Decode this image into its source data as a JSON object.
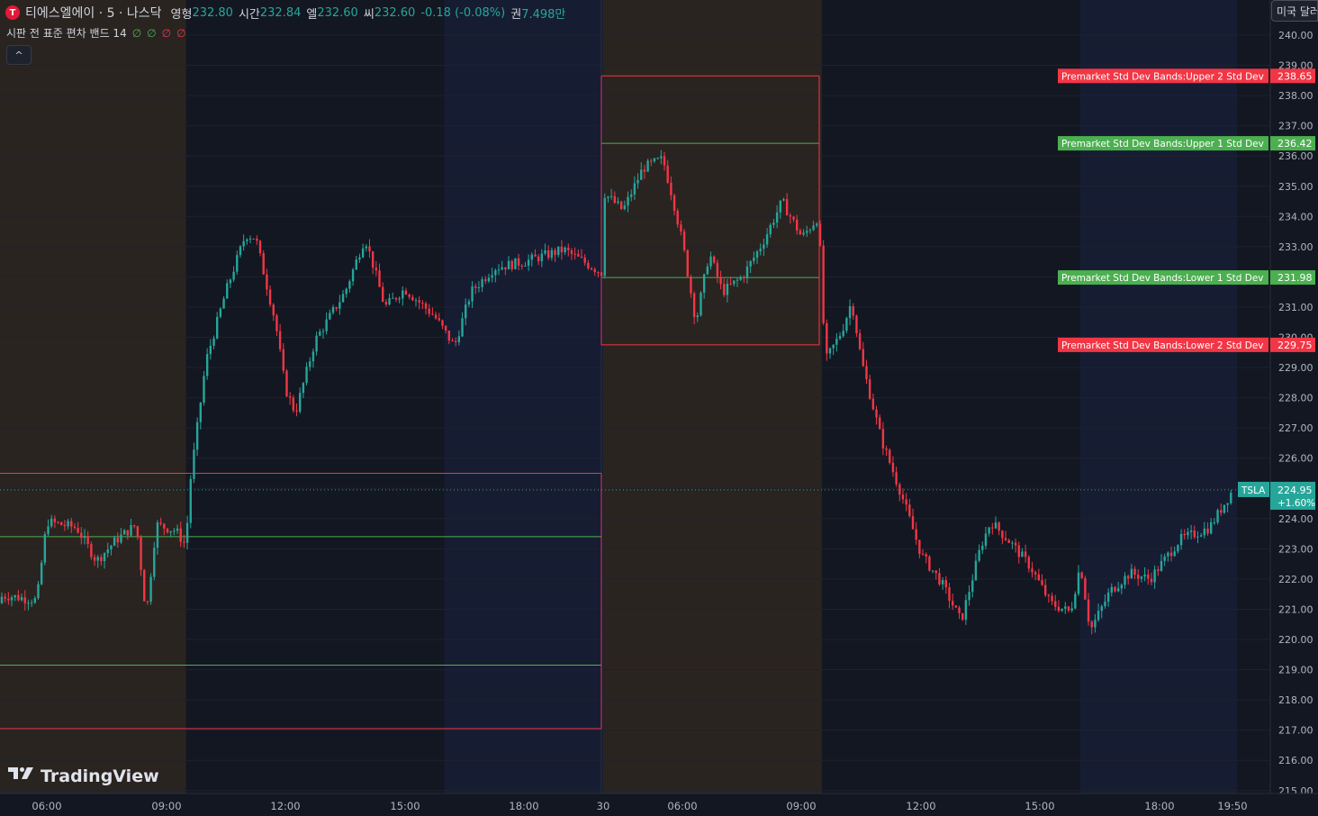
{
  "header": {
    "logo_letter": "T",
    "symbol": "티에스엘에이 · 5 · 나스닥",
    "open_label": "영형",
    "open": "232.80",
    "high_label": "시간",
    "high": "232.84",
    "low_label": "엘",
    "low": "232.60",
    "close_label": "씨",
    "close": "232.60",
    "change": "-0.18 (-0.08%)",
    "volume_label": "권",
    "volume": "7.498만"
  },
  "indicator": {
    "label": "시판 전 표준 편차 밴드 14",
    "values": [
      "∅",
      "∅",
      "∅",
      "∅"
    ]
  },
  "collapse_button": "^",
  "currency_button": "미국 달러",
  "branding": "TradingView",
  "colors": {
    "background": "#131722",
    "up": "#26a69a",
    "down": "#f23645",
    "band1": "#4caf50",
    "band2": "#f23645",
    "premarket_shade": "#2a2421",
    "postmarket_shade": "#161d33",
    "grid": "#1e222d"
  },
  "chart_data": {
    "type": "candlestick",
    "symbol": "TSLA",
    "timeframe": "5",
    "last_price": "224.95",
    "last_change": "+1.60%",
    "ylim": [
      215,
      240.5
    ],
    "y_ticks": [
      "240.00",
      "239.00",
      "238.00",
      "237.00",
      "236.00",
      "235.00",
      "234.00",
      "233.00",
      "232.00",
      "231.00",
      "230.00",
      "229.00",
      "228.00",
      "227.00",
      "226.00",
      "225.00",
      "224.00",
      "223.00",
      "222.00",
      "221.00",
      "220.00",
      "219.00",
      "218.00",
      "217.00",
      "216.00",
      "215.00"
    ],
    "x_ticks": [
      "06:00",
      "09:00",
      "12:00",
      "15:00",
      "18:00",
      "30",
      "06:00",
      "09:00",
      "12:00",
      "15:00",
      "18:00",
      "19:50"
    ],
    "sessions": [
      {
        "type": "premarket",
        "day": 1,
        "start": "04:00",
        "end": "09:30"
      },
      {
        "type": "regular",
        "day": 1,
        "start": "09:30",
        "end": "16:00"
      },
      {
        "type": "postmarket",
        "day": 1,
        "start": "16:00",
        "end": "20:00"
      },
      {
        "type": "premarket",
        "day": 2,
        "start": "04:00",
        "end": "09:30"
      },
      {
        "type": "regular",
        "day": 2,
        "start": "09:30",
        "end": "16:00"
      },
      {
        "type": "postmarket",
        "day": 2,
        "start": "16:00",
        "end": "19:50"
      }
    ],
    "premarket_bands": [
      {
        "day": 1,
        "upper2": 225.5,
        "upper1": 223.4,
        "lower1": 219.15,
        "lower2": 217.05
      },
      {
        "day": 2,
        "upper2": 238.65,
        "upper1": 236.42,
        "lower1": 231.98,
        "lower2": 229.75
      }
    ],
    "band_labels": [
      {
        "name": "Premarket Std Dev Bands:Upper 2 Std Dev",
        "value": "238.65",
        "color": "red"
      },
      {
        "name": "Premarket Std Dev Bands:Upper 1 Std Dev",
        "value": "236.42",
        "color": "green"
      },
      {
        "name": "Premarket Std Dev Bands:Lower 1 Std Dev",
        "value": "231.98",
        "color": "green"
      },
      {
        "name": "Premarket Std Dev Bands:Lower 2 Std Dev",
        "value": "229.75",
        "color": "red"
      }
    ],
    "price_keypoints": [
      {
        "t": "d1 04:00",
        "p": 221.2
      },
      {
        "t": "d1 05:00",
        "p": 221.45
      },
      {
        "t": "d1 05:45",
        "p": 221.3
      },
      {
        "t": "d1 06:00",
        "p": 223.9
      },
      {
        "t": "d1 06:45",
        "p": 223.7
      },
      {
        "t": "d1 07:15",
        "p": 222.6
      },
      {
        "t": "d1 07:45",
        "p": 223.3
      },
      {
        "t": "d1 08:15",
        "p": 223.8
      },
      {
        "t": "d1 08:30",
        "p": 220.8
      },
      {
        "t": "d1 08:45",
        "p": 223.8
      },
      {
        "t": "d1 09:15",
        "p": 223.6
      },
      {
        "t": "d1 09:30",
        "p": 223.1
      },
      {
        "t": "d1 09:35",
        "p": 225.0
      },
      {
        "t": "d1 10:00",
        "p": 229.2
      },
      {
        "t": "d1 10:30",
        "p": 231.5
      },
      {
        "t": "d1 11:00",
        "p": 233.4
      },
      {
        "t": "d1 11:15",
        "p": 233.3
      },
      {
        "t": "d1 11:45",
        "p": 230.5
      },
      {
        "t": "d1 12:00",
        "p": 228.3
      },
      {
        "t": "d1 12:15",
        "p": 227.5
      },
      {
        "t": "d1 12:45",
        "p": 229.9
      },
      {
        "t": "d1 13:30",
        "p": 231.5
      },
      {
        "t": "d1 14:00",
        "p": 233.3
      },
      {
        "t": "d1 14:15",
        "p": 232.2
      },
      {
        "t": "d1 14:30",
        "p": 231.0
      },
      {
        "t": "d1 15:00",
        "p": 231.6
      },
      {
        "t": "d1 15:45",
        "p": 230.7
      },
      {
        "t": "d1 16:15",
        "p": 229.7
      },
      {
        "t": "d1 16:40",
        "p": 231.5
      },
      {
        "t": "d1 17:15",
        "p": 232.3
      },
      {
        "t": "d1 18:00",
        "p": 232.5
      },
      {
        "t": "d1 19:00",
        "p": 232.9
      },
      {
        "t": "d1 20:00",
        "p": 232.1
      },
      {
        "t": "d2 04:00",
        "p": 234.8
      },
      {
        "t": "d2 04:30",
        "p": 234.2
      },
      {
        "t": "d2 05:00",
        "p": 235.6
      },
      {
        "t": "d2 05:30",
        "p": 235.9
      },
      {
        "t": "d2 05:45",
        "p": 234.6
      },
      {
        "t": "d2 06:00",
        "p": 233.1
      },
      {
        "t": "d2 06:20",
        "p": 230.5
      },
      {
        "t": "d2 06:40",
        "p": 232.8
      },
      {
        "t": "d2 07:00",
        "p": 231.5
      },
      {
        "t": "d2 07:30",
        "p": 232.0
      },
      {
        "t": "d2 08:00",
        "p": 233.1
      },
      {
        "t": "d2 08:30",
        "p": 234.5
      },
      {
        "t": "d2 09:00",
        "p": 233.3
      },
      {
        "t": "d2 09:25",
        "p": 234.0
      },
      {
        "t": "d2 09:35",
        "p": 229.2
      },
      {
        "t": "d2 10:00",
        "p": 230.2
      },
      {
        "t": "d2 10:15",
        "p": 231.2
      },
      {
        "t": "d2 10:30",
        "p": 229.2
      },
      {
        "t": "d2 11:00",
        "p": 226.6
      },
      {
        "t": "d2 11:30",
        "p": 224.8
      },
      {
        "t": "d2 12:00",
        "p": 222.8
      },
      {
        "t": "d2 12:30",
        "p": 221.9
      },
      {
        "t": "d2 13:00",
        "p": 220.6
      },
      {
        "t": "d2 13:30",
        "p": 223.1
      },
      {
        "t": "d2 13:45",
        "p": 223.9
      },
      {
        "t": "d2 14:15",
        "p": 223.2
      },
      {
        "t": "d2 14:45",
        "p": 222.4
      },
      {
        "t": "d2 15:15",
        "p": 221.2
      },
      {
        "t": "d2 15:45",
        "p": 220.9
      },
      {
        "t": "d2 16:00",
        "p": 222.5
      },
      {
        "t": "d2 16:15",
        "p": 220.3
      },
      {
        "t": "d2 16:45",
        "p": 221.6
      },
      {
        "t": "d2 17:15",
        "p": 222.2
      },
      {
        "t": "d2 17:45",
        "p": 222.0
      },
      {
        "t": "d2 18:30",
        "p": 223.3
      },
      {
        "t": "d2 19:15",
        "p": 223.7
      },
      {
        "t": "d2 19:50",
        "p": 224.95
      }
    ]
  }
}
